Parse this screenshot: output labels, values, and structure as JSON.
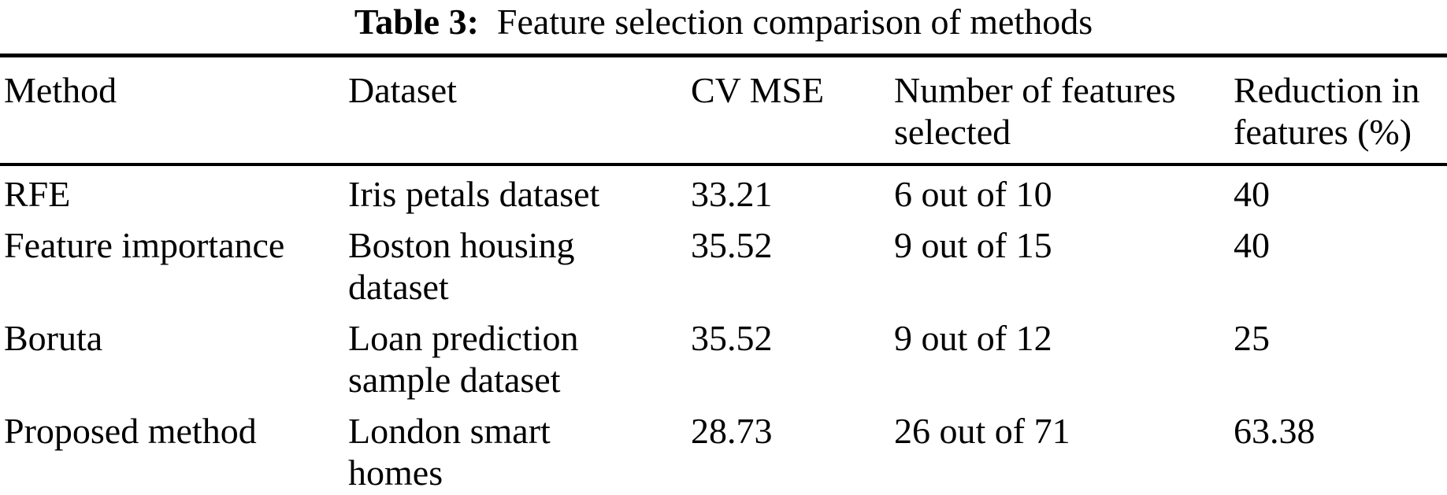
{
  "table": {
    "caption": {
      "label": "Table 3:",
      "text": "Feature selection comparison of methods"
    },
    "columns": [
      "Method",
      "Dataset",
      "CV MSE",
      "Number of features\nselected",
      "Reduction in\nfeatures (%)"
    ],
    "rows": [
      {
        "method": "RFE",
        "dataset": "Iris petals dataset",
        "cv_mse": "33.21",
        "features_selected": "6 out of 10",
        "reduction": "40"
      },
      {
        "method": "Feature importance",
        "dataset": "Boston housing\ndataset",
        "cv_mse": "35.52",
        "features_selected": "9 out of 15",
        "reduction": "40"
      },
      {
        "method": "Boruta",
        "dataset": "Loan prediction\nsample dataset",
        "cv_mse": "35.52",
        "features_selected": "9 out of 12",
        "reduction": "25"
      },
      {
        "method": "Proposed method",
        "dataset": "London smart\nhomes",
        "cv_mse": "28.73",
        "features_selected": "26 out of 71",
        "reduction": "63.38"
      }
    ],
    "colors": {
      "text": "#000000",
      "background": "#ffffff",
      "rule": "#000000"
    }
  },
  "chart_data": {
    "type": "table",
    "title": "Table 3: Feature selection comparison of methods",
    "columns": [
      "Method",
      "Dataset",
      "CV MSE",
      "Number of features selected",
      "Reduction in features (%)"
    ],
    "rows": [
      [
        "RFE",
        "Iris petals dataset",
        33.21,
        "6 out of 10",
        40
      ],
      [
        "Feature importance",
        "Boston housing dataset",
        35.52,
        "9 out of 15",
        40
      ],
      [
        "Boruta",
        "Loan prediction sample dataset",
        35.52,
        "9 out of 12",
        25
      ],
      [
        "Proposed method",
        "London smart homes",
        28.73,
        "26 out of 71",
        63.38
      ]
    ]
  }
}
